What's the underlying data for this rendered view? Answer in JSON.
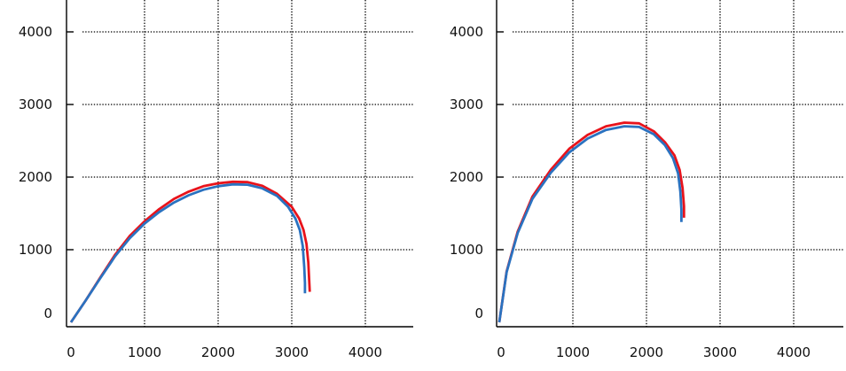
{
  "chart_data": [
    {
      "type": "line",
      "title": "",
      "xlabel": "",
      "ylabel": "",
      "xlim": [
        0,
        4600
      ],
      "ylim": [
        -100,
        4400
      ],
      "x_ticks": [
        "0",
        "1000",
        "2000",
        "3000",
        "4000"
      ],
      "y_ticks": [
        "0",
        "1000",
        "2000",
        "3000",
        "4000"
      ],
      "grid": true,
      "legend": "none",
      "series": [
        {
          "color": "#e8131b",
          "points": [
            [
              0,
              0
            ],
            [
              200,
              300
            ],
            [
              400,
              620
            ],
            [
              600,
              930
            ],
            [
              800,
              1190
            ],
            [
              1000,
              1390
            ],
            [
              1200,
              1560
            ],
            [
              1400,
              1700
            ],
            [
              1600,
              1800
            ],
            [
              1800,
              1875
            ],
            [
              2000,
              1915
            ],
            [
              2200,
              1935
            ],
            [
              2400,
              1930
            ],
            [
              2600,
              1880
            ],
            [
              2800,
              1770
            ],
            [
              3000,
              1590
            ],
            [
              3100,
              1430
            ],
            [
              3160,
              1270
            ],
            [
              3200,
              1080
            ],
            [
              3225,
              820
            ],
            [
              3240,
              520
            ],
            [
              3245,
              420
            ]
          ]
        },
        {
          "color": "#2a72c0",
          "points": [
            [
              0,
              0
            ],
            [
              200,
              300
            ],
            [
              400,
              610
            ],
            [
              600,
              910
            ],
            [
              800,
              1160
            ],
            [
              1000,
              1360
            ],
            [
              1200,
              1520
            ],
            [
              1400,
              1650
            ],
            [
              1600,
              1750
            ],
            [
              1800,
              1825
            ],
            [
              2000,
              1875
            ],
            [
              2200,
              1900
            ],
            [
              2400,
              1895
            ],
            [
              2600,
              1845
            ],
            [
              2800,
              1740
            ],
            [
              2950,
              1590
            ],
            [
              3050,
              1430
            ],
            [
              3110,
              1270
            ],
            [
              3150,
              1050
            ],
            [
              3170,
              760
            ],
            [
              3180,
              540
            ],
            [
              3180,
              400
            ]
          ]
        }
      ]
    },
    {
      "type": "line",
      "title": "",
      "xlabel": "",
      "ylabel": "",
      "xlim": [
        0,
        4600
      ],
      "ylim": [
        -100,
        4400
      ],
      "x_ticks": [
        "0",
        "1000",
        "2000",
        "3000",
        "4000"
      ],
      "y_ticks": [
        "0",
        "1000",
        "2000",
        "3000",
        "4000"
      ],
      "grid": true,
      "legend": "none",
      "series": [
        {
          "color": "#e8131b",
          "points": [
            [
              0,
              0
            ],
            [
              100,
              700
            ],
            [
              250,
              1250
            ],
            [
              450,
              1730
            ],
            [
              700,
              2100
            ],
            [
              950,
              2390
            ],
            [
              1200,
              2580
            ],
            [
              1450,
              2700
            ],
            [
              1700,
              2750
            ],
            [
              1900,
              2740
            ],
            [
              2100,
              2630
            ],
            [
              2250,
              2480
            ],
            [
              2380,
              2300
            ],
            [
              2450,
              2100
            ],
            [
              2490,
              1850
            ],
            [
              2510,
              1600
            ],
            [
              2510,
              1440
            ]
          ]
        },
        {
          "color": "#2a72c0",
          "points": [
            [
              0,
              0
            ],
            [
              100,
              690
            ],
            [
              250,
              1230
            ],
            [
              450,
              1700
            ],
            [
              700,
              2060
            ],
            [
              950,
              2340
            ],
            [
              1200,
              2530
            ],
            [
              1450,
              2650
            ],
            [
              1700,
              2700
            ],
            [
              1900,
              2690
            ],
            [
              2100,
              2590
            ],
            [
              2250,
              2440
            ],
            [
              2360,
              2260
            ],
            [
              2430,
              2050
            ],
            [
              2460,
              1800
            ],
            [
              2475,
              1550
            ],
            [
              2475,
              1380
            ]
          ]
        }
      ]
    }
  ]
}
